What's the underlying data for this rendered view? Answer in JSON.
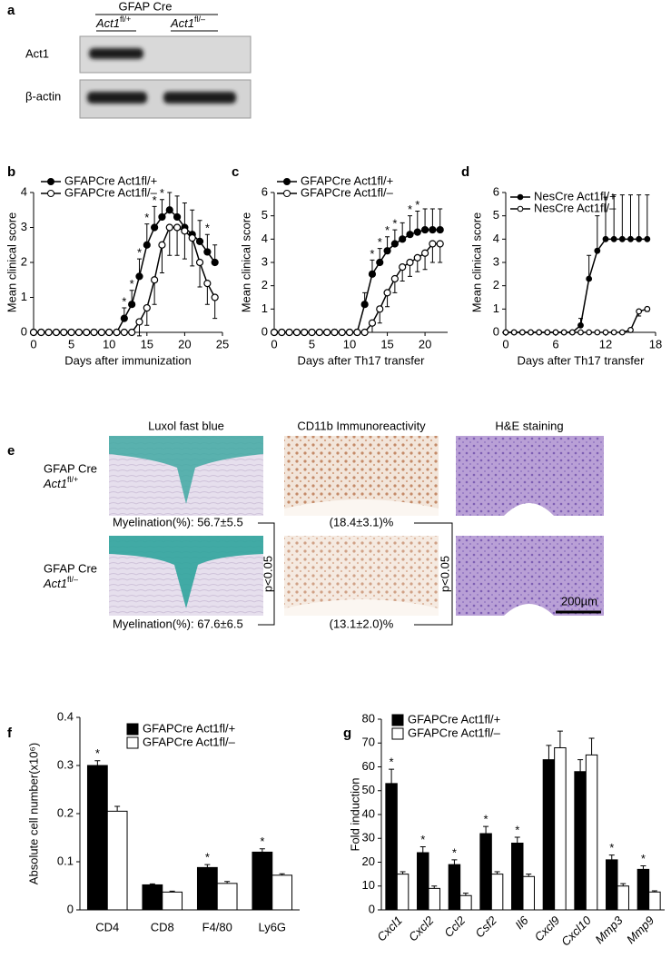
{
  "panel_a": {
    "label": "a",
    "header": "GFAP Cre",
    "columns": [
      {
        "gene": "Act1",
        "allele": "fl/+"
      },
      {
        "gene": "Act1",
        "allele": "fl/–"
      }
    ],
    "rows": [
      "Act1",
      "β-actin"
    ]
  },
  "panel_e": {
    "label": "e",
    "columns": [
      "Luxol fast blue",
      "CD11b Immunoreactivity",
      "H&E staining"
    ],
    "rows": [
      {
        "line": "GFAP Cre",
        "gene": "Act1",
        "allele": "fl/+",
        "myelination": "Myelination(%): 56.7±5.5",
        "cd11b": "(18.4±3.1)%"
      },
      {
        "line": "GFAP Cre",
        "gene": "Act1",
        "allele": "fl/–",
        "myelination": "Myelination(%): 67.6±6.5",
        "cd11b": "(13.1±2.0)%"
      }
    ],
    "stats": [
      "p<0.05",
      "p<0.05"
    ],
    "scale_bar": "200µm"
  },
  "chart_data": [
    {
      "type": "line",
      "panel_label": "b",
      "xlabel": "Days after immunization",
      "ylabel": "Mean clinical score",
      "x": [
        0,
        1,
        2,
        3,
        4,
        5,
        6,
        7,
        8,
        9,
        10,
        11,
        12,
        13,
        14,
        15,
        16,
        17,
        18,
        19,
        20,
        21,
        22,
        23,
        24
      ],
      "xlim": [
        0,
        25
      ],
      "xticks": [
        0,
        5,
        10,
        15,
        20,
        25
      ],
      "ylim": [
        0,
        4
      ],
      "yticks": [
        0,
        1,
        2,
        3,
        4
      ],
      "legend": "upper left",
      "series": [
        {
          "name": "GFAPCre Act1fl/+",
          "color": "#000000",
          "marker": "filled",
          "values": [
            0,
            0,
            0,
            0,
            0,
            0,
            0,
            0,
            0,
            0,
            0,
            0,
            0.4,
            0.8,
            1.6,
            2.5,
            3.0,
            3.3,
            3.5,
            3.3,
            3.0,
            2.8,
            2.6,
            2.3,
            2.0
          ],
          "errors": [
            null,
            null,
            null,
            null,
            null,
            null,
            null,
            null,
            null,
            null,
            null,
            null,
            0.3,
            0.4,
            0.5,
            0.6,
            0.6,
            0.5,
            0.5,
            0.6,
            0.7,
            0.7,
            0.6,
            0.5,
            0.5
          ]
        },
        {
          "name": "GFAPCre Act1fl/–",
          "color": "#000000",
          "marker": "open",
          "values": [
            0,
            0,
            0,
            0,
            0,
            0,
            0,
            0,
            0,
            0,
            0,
            0,
            0,
            0,
            0.3,
            0.7,
            1.5,
            2.5,
            3.0,
            3.0,
            2.9,
            2.7,
            2.0,
            1.4,
            1.0
          ],
          "errors": [
            null,
            null,
            null,
            null,
            null,
            null,
            null,
            null,
            null,
            null,
            null,
            null,
            null,
            null,
            0.4,
            0.5,
            0.7,
            0.8,
            0.8,
            0.8,
            0.8,
            0.8,
            0.7,
            0.6,
            0.6
          ]
        }
      ],
      "annotations": [
        {
          "x": 12,
          "text": "*"
        },
        {
          "x": 13,
          "text": "*"
        },
        {
          "x": 14,
          "text": "*"
        },
        {
          "x": 15,
          "text": "*"
        },
        {
          "x": 16,
          "text": "*"
        },
        {
          "x": 17,
          "text": "*"
        },
        {
          "x": 23,
          "text": "*"
        }
      ]
    },
    {
      "type": "line",
      "panel_label": "c",
      "xlabel": "Days after Th17 transfer",
      "ylabel": "Mean clinical score",
      "x": [
        0,
        1,
        2,
        3,
        4,
        5,
        6,
        7,
        8,
        9,
        10,
        11,
        12,
        13,
        14,
        15,
        16,
        17,
        18,
        19,
        20,
        21,
        22
      ],
      "xlim": [
        0,
        23
      ],
      "xticks": [
        0,
        5,
        10,
        15,
        20
      ],
      "ylim": [
        0,
        6
      ],
      "yticks": [
        0,
        1,
        2,
        3,
        4,
        5,
        6
      ],
      "legend": "upper left",
      "series": [
        {
          "name": "GFAPCre Act1fl/+",
          "color": "#000000",
          "marker": "filled",
          "values": [
            0,
            0,
            0,
            0,
            0,
            0,
            0,
            0,
            0,
            0,
            0,
            0,
            1.2,
            2.5,
            3.0,
            3.5,
            3.8,
            4.0,
            4.2,
            4.3,
            4.4,
            4.4,
            4.4
          ],
          "errors": [
            null,
            null,
            null,
            null,
            null,
            null,
            null,
            null,
            null,
            null,
            null,
            null,
            0.5,
            0.6,
            0.6,
            0.6,
            0.6,
            0.7,
            0.8,
            0.9,
            0.9,
            0.9,
            0.9
          ]
        },
        {
          "name": "GFAPCre Act1fl/–",
          "color": "#000000",
          "marker": "open",
          "values": [
            0,
            0,
            0,
            0,
            0,
            0,
            0,
            0,
            0,
            0,
            0,
            0,
            0,
            0.4,
            1.0,
            1.7,
            2.3,
            2.8,
            3.0,
            3.2,
            3.4,
            3.8,
            3.8
          ],
          "errors": [
            null,
            null,
            null,
            null,
            null,
            null,
            null,
            null,
            null,
            null,
            null,
            null,
            null,
            0.4,
            0.6,
            0.6,
            0.6,
            0.6,
            0.6,
            0.6,
            0.7,
            0.8,
            0.8
          ]
        }
      ],
      "annotations": [
        {
          "x": 13,
          "text": "*"
        },
        {
          "x": 14,
          "text": "*"
        },
        {
          "x": 15,
          "text": "*"
        },
        {
          "x": 16,
          "text": "*"
        },
        {
          "x": 18,
          "text": "*"
        },
        {
          "x": 19,
          "text": "*"
        }
      ]
    },
    {
      "type": "line",
      "panel_label": "d",
      "xlabel": "Days after Th17 transfer",
      "ylabel": "Mean clinical score",
      "x": [
        0,
        1,
        2,
        3,
        4,
        5,
        6,
        7,
        8,
        9,
        10,
        11,
        12,
        13,
        14,
        15,
        16,
        17
      ],
      "xlim": [
        0,
        18
      ],
      "xticks": [
        0,
        6,
        12,
        18
      ],
      "ylim": [
        0,
        6
      ],
      "yticks": [
        0,
        1,
        2,
        3,
        4,
        5,
        6
      ],
      "legend": "upper left",
      "series": [
        {
          "name": "NesCre Act1fl/+",
          "color": "#000000",
          "marker": "filled",
          "values": [
            0,
            0,
            0,
            0,
            0,
            0,
            0,
            0,
            0,
            0.3,
            2.3,
            3.5,
            4,
            4,
            4,
            4,
            4,
            4
          ],
          "errors": [
            null,
            null,
            null,
            null,
            null,
            null,
            null,
            null,
            null,
            0.3,
            1.0,
            1.5,
            1.8,
            1.9,
            1.9,
            1.9,
            1.9,
            1.9
          ]
        },
        {
          "name": "NesCre Act1fl/–",
          "color": "#000000",
          "marker": "open",
          "values": [
            0,
            0,
            0,
            0,
            0,
            0,
            0,
            0,
            0,
            0,
            0,
            0,
            0,
            0,
            0,
            0.1,
            0.9,
            1.0
          ],
          "errors": [
            null,
            null,
            null,
            null,
            null,
            null,
            null,
            null,
            null,
            null,
            null,
            null,
            null,
            null,
            null,
            null,
            0.2,
            0.1
          ]
        }
      ],
      "annotations": []
    },
    {
      "type": "bar",
      "panel_label": "f",
      "ylabel": "Absolute cell number(x10⁶)",
      "categories": [
        "CD4",
        "CD8",
        "F4/80",
        "Ly6G"
      ],
      "ylim": [
        0,
        0.4
      ],
      "yticks": [
        0,
        0.1,
        0.2,
        0.3,
        0.4
      ],
      "legend": "upper right",
      "series": [
        {
          "name": "GFAPCre Act1fl/+",
          "color": "#000000",
          "values": [
            0.3,
            0.052,
            0.088,
            0.12
          ],
          "errors": [
            0.01,
            0.002,
            0.006,
            0.007
          ]
        },
        {
          "name": "GFAPCre Act1fl/–",
          "color": "#ffffff",
          "values": [
            0.205,
            0.037,
            0.055,
            0.072
          ],
          "errors": [
            0.01,
            0.002,
            0.004,
            0.003
          ]
        }
      ],
      "annotations": [
        {
          "category": "CD4",
          "text": "*"
        },
        {
          "category": "F4/80",
          "text": "*"
        },
        {
          "category": "Ly6G",
          "text": "*"
        }
      ]
    },
    {
      "type": "bar",
      "panel_label": "g",
      "ylabel": "Fold induction",
      "categories": [
        "Cxcl1",
        "Cxcl2",
        "Ccl2",
        "Csf2",
        "Il6",
        "Cxcl9",
        "Cxcl10",
        "Mmp3",
        "Mmp9"
      ],
      "xtick_rotation": 45,
      "ylim": [
        0,
        80
      ],
      "yticks": [
        0,
        10,
        20,
        30,
        40,
        50,
        60,
        70,
        80
      ],
      "legend": "upper left",
      "series": [
        {
          "name": "GFAPCre Act1fl/+",
          "color": "#000000",
          "values": [
            53,
            24,
            19,
            32,
            28,
            63,
            58,
            21,
            17
          ],
          "errors": [
            6,
            2.5,
            2,
            3,
            2.5,
            6,
            5,
            2,
            1.5
          ]
        },
        {
          "name": "GFAPCre Act1fl/–",
          "color": "#ffffff",
          "values": [
            15,
            9,
            6,
            15,
            14,
            68,
            65,
            10,
            7.5
          ],
          "errors": [
            1,
            1,
            1,
            1,
            1,
            7,
            7,
            1,
            0.5
          ]
        }
      ],
      "annotations": [
        {
          "category": "Cxcl1",
          "text": "*"
        },
        {
          "category": "Cxcl2",
          "text": "*"
        },
        {
          "category": "Ccl2",
          "text": "*"
        },
        {
          "category": "Csf2",
          "text": "*"
        },
        {
          "category": "Il6",
          "text": "*"
        },
        {
          "category": "Mmp3",
          "text": "*"
        },
        {
          "category": "Mmp9",
          "text": "*"
        }
      ]
    }
  ]
}
